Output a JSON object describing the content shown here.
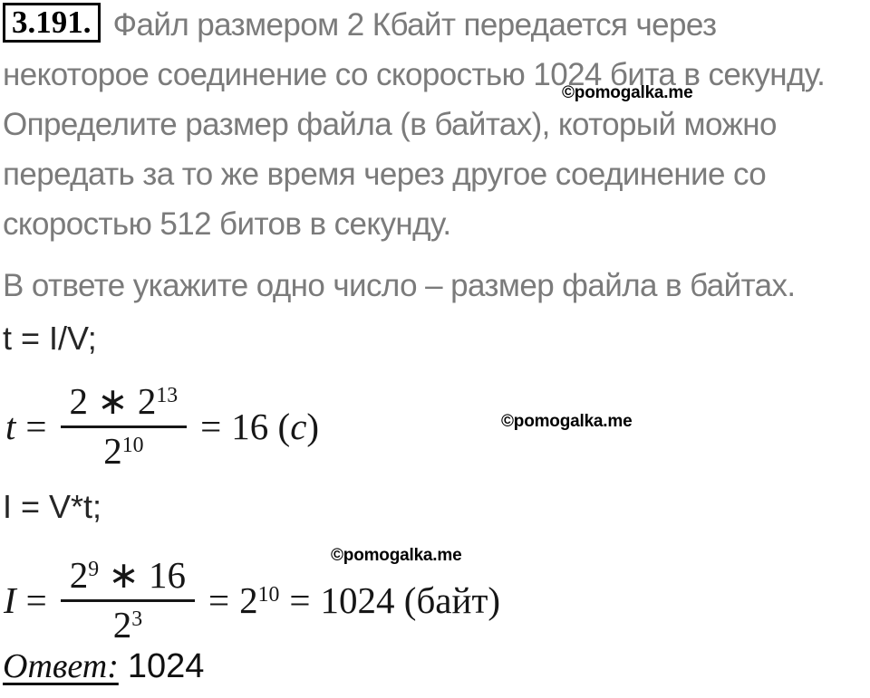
{
  "watermark": {
    "text": "©pomogalka.me"
  },
  "problem": {
    "number": "3.191.",
    "lines": [
      "Файл размером 2 Кбайт передается через",
      "некоторое соединение со скоростью 1024 бита в секунду.",
      "Определите размер файла (в байтах), который можно",
      "передать за то же время через другое соединение со",
      "скоростью 512 битов в секунду."
    ],
    "note": "В ответе укажите одно число – размер файла в байтах."
  },
  "solution": {
    "relation_t": "t = I/V;",
    "relation_i": "I = V*t;",
    "formula_t": {
      "var": "t",
      "eq1": "=",
      "num_base": "2 ∗ 2",
      "num_exp": "13",
      "den_base": "2",
      "den_exp": "10",
      "eq2": "=",
      "result_pre": "16 (",
      "result_var": "с",
      "result_post": ")"
    },
    "formula_i": {
      "var": "I",
      "eq1": "=",
      "num_base": "2",
      "num_exp": "9",
      "num_rest": " ∗ 16",
      "den_base": "2",
      "den_exp": "3",
      "eq2": "=",
      "mid_base": "2",
      "mid_exp": "10",
      "eq3": "=",
      "result": "1024 (байт)"
    },
    "answer_label": "Ответ:",
    "answer_value": "1024"
  }
}
